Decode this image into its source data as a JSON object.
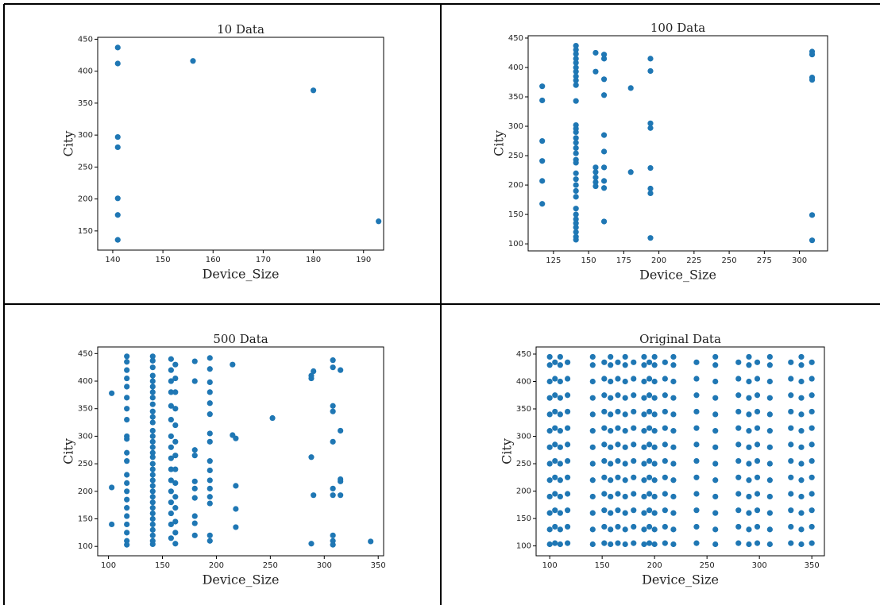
{
  "chart_data": [
    {
      "type": "scatter",
      "title": "10 Data",
      "x_label": "Device_Size",
      "y_label": "City",
      "color": "#1f77b4",
      "xlim": [
        137,
        194
      ],
      "ylim": [
        120,
        453
      ],
      "xticks": [
        140,
        150,
        160,
        170,
        180,
        190
      ],
      "yticks": [
        150,
        200,
        250,
        300,
        350,
        400,
        450
      ],
      "x": [
        141,
        141,
        141,
        141,
        141,
        141,
        141,
        156,
        180,
        193
      ],
      "y": [
        437,
        412,
        297,
        281,
        201,
        175,
        136,
        416,
        370,
        165
      ]
    },
    {
      "type": "scatter",
      "title": "100 Data",
      "x_label": "Device_Size",
      "y_label": "City",
      "color": "#1f77b4",
      "xlim": [
        107,
        320
      ],
      "ylim": [
        88,
        454
      ],
      "xticks": [
        125,
        150,
        175,
        200,
        225,
        250,
        275,
        300
      ],
      "yticks": [
        100,
        150,
        200,
        250,
        300,
        350,
        400,
        450
      ],
      "x": [
        117,
        117,
        117,
        117,
        117,
        117,
        141,
        141,
        141,
        141,
        141,
        141,
        141,
        141,
        141,
        141,
        141,
        141,
        141,
        141,
        141,
        141,
        141,
        141,
        141,
        141,
        141,
        141,
        141,
        141,
        141,
        141,
        141,
        141,
        141,
        141,
        141,
        141,
        141,
        155,
        155,
        155,
        155,
        155,
        155,
        155,
        161,
        161,
        161,
        161,
        161,
        161,
        161,
        161,
        161,
        161,
        180,
        180,
        194,
        194,
        194,
        194,
        194,
        194,
        194,
        194,
        309,
        309,
        309,
        309,
        309,
        309
      ],
      "y": [
        368,
        344,
        275,
        241,
        207,
        168,
        437,
        430,
        423,
        415,
        408,
        400,
        393,
        385,
        378,
        370,
        343,
        302,
        296,
        290,
        280,
        272,
        263,
        254,
        243,
        238,
        220,
        210,
        200,
        190,
        180,
        160,
        150,
        142,
        135,
        128,
        120,
        112,
        107,
        425,
        393,
        230,
        222,
        213,
        205,
        198,
        422,
        415,
        380,
        353,
        285,
        257,
        230,
        207,
        195,
        138,
        365,
        222,
        415,
        394,
        305,
        297,
        229,
        194,
        186,
        110,
        427,
        422,
        383,
        379,
        149,
        106
      ]
    },
    {
      "type": "scatter",
      "title": "500 Data",
      "x_label": "Device_Size",
      "y_label": "City",
      "color": "#1f77b4",
      "xlim": [
        90,
        355
      ],
      "ylim": [
        83,
        462
      ],
      "xticks": [
        100,
        150,
        200,
        250,
        300,
        350
      ],
      "yticks": [
        100,
        150,
        200,
        250,
        300,
        350,
        400,
        450
      ],
      "x": [
        103,
        103,
        103,
        117,
        117,
        117,
        117,
        117,
        117,
        117,
        117,
        117,
        117,
        117,
        117,
        117,
        117,
        117,
        117,
        117,
        117,
        117,
        117,
        117,
        117,
        141,
        141,
        141,
        141,
        141,
        141,
        141,
        141,
        141,
        141,
        141,
        141,
        141,
        141,
        141,
        141,
        141,
        141,
        141,
        141,
        141,
        141,
        141,
        141,
        141,
        141,
        141,
        141,
        141,
        141,
        141,
        141,
        141,
        141,
        158,
        158,
        158,
        158,
        158,
        158,
        158,
        158,
        158,
        158,
        158,
        158,
        158,
        158,
        158,
        158,
        162,
        162,
        162,
        162,
        162,
        162,
        162,
        162,
        162,
        162,
        162,
        162,
        162,
        162,
        180,
        180,
        180,
        180,
        180,
        180,
        180,
        180,
        180,
        180,
        194,
        194,
        194,
        194,
        194,
        194,
        194,
        194,
        194,
        194,
        194,
        194,
        194,
        194,
        194,
        194,
        215,
        215,
        218,
        218,
        218,
        218,
        252,
        288,
        288,
        288,
        288,
        290,
        290,
        308,
        308,
        308,
        308,
        308,
        308,
        308,
        308,
        308,
        308,
        315,
        315,
        315,
        315,
        315,
        343
      ],
      "y": [
        378,
        207,
        140,
        445,
        435,
        420,
        405,
        390,
        370,
        350,
        330,
        300,
        295,
        270,
        255,
        230,
        215,
        200,
        185,
        170,
        155,
        140,
        125,
        110,
        103,
        445,
        437,
        425,
        410,
        400,
        390,
        380,
        370,
        358,
        345,
        335,
        325,
        310,
        300,
        290,
        280,
        270,
        262,
        250,
        240,
        230,
        220,
        210,
        200,
        190,
        180,
        170,
        160,
        150,
        140,
        130,
        120,
        110,
        104,
        440,
        420,
        400,
        380,
        355,
        330,
        300,
        280,
        260,
        240,
        220,
        200,
        180,
        160,
        140,
        115,
        430,
        405,
        380,
        350,
        320,
        290,
        265,
        240,
        215,
        190,
        170,
        145,
        125,
        105,
        436,
        400,
        275,
        265,
        218,
        205,
        188,
        155,
        142,
        120,
        442,
        422,
        398,
        380,
        360,
        340,
        305,
        290,
        255,
        238,
        220,
        205,
        190,
        178,
        120,
        110,
        430,
        302,
        296,
        210,
        168,
        135,
        333,
        410,
        405,
        262,
        105,
        418,
        193,
        438,
        425,
        355,
        345,
        290,
        205,
        193,
        120,
        110,
        103,
        420,
        310,
        222,
        218,
        193,
        109
      ]
    },
    {
      "type": "scatter",
      "title": "Original Data",
      "x_label": "Device_Size",
      "y_label": "City",
      "color": "#1f77b4",
      "xlim": [
        87,
        362
      ],
      "ylim": [
        82,
        463
      ],
      "xticks": [
        100,
        150,
        200,
        250,
        300,
        350
      ],
      "yticks": [
        100,
        150,
        200,
        250,
        300,
        350,
        400,
        450
      ],
      "x": [
        100,
        100,
        100,
        100,
        100,
        100,
        100,
        100,
        100,
        100,
        100,
        100,
        100,
        105,
        105,
        105,
        105,
        105,
        105,
        105,
        105,
        105,
        105,
        105,
        105,
        110,
        110,
        110,
        110,
        110,
        110,
        110,
        110,
        110,
        110,
        110,
        110,
        110,
        117,
        117,
        117,
        117,
        117,
        117,
        117,
        117,
        117,
        117,
        117,
        117,
        141,
        141,
        141,
        141,
        141,
        141,
        141,
        141,
        141,
        141,
        141,
        141,
        141,
        152,
        152,
        152,
        152,
        152,
        152,
        152,
        152,
        152,
        152,
        152,
        152,
        158,
        158,
        158,
        158,
        158,
        158,
        158,
        158,
        158,
        158,
        158,
        158,
        158,
        165,
        165,
        165,
        165,
        165,
        165,
        165,
        165,
        165,
        165,
        165,
        165,
        172,
        172,
        172,
        172,
        172,
        172,
        172,
        172,
        172,
        172,
        172,
        172,
        172,
        180,
        180,
        180,
        180,
        180,
        180,
        180,
        180,
        180,
        180,
        180,
        180,
        190,
        190,
        190,
        190,
        190,
        190,
        190,
        190,
        190,
        190,
        190,
        190,
        190,
        195,
        195,
        195,
        195,
        195,
        195,
        195,
        195,
        195,
        195,
        195,
        195,
        200,
        200,
        200,
        200,
        200,
        200,
        200,
        200,
        200,
        200,
        200,
        200,
        200,
        210,
        210,
        210,
        210,
        210,
        210,
        210,
        210,
        210,
        210,
        210,
        210,
        218,
        218,
        218,
        218,
        218,
        218,
        218,
        218,
        218,
        218,
        218,
        218,
        218,
        240,
        240,
        240,
        240,
        240,
        240,
        240,
        240,
        240,
        240,
        240,
        240,
        258,
        258,
        258,
        258,
        258,
        258,
        258,
        258,
        258,
        258,
        258,
        258,
        258,
        280,
        280,
        280,
        280,
        280,
        280,
        280,
        280,
        280,
        280,
        280,
        280,
        290,
        290,
        290,
        290,
        290,
        290,
        290,
        290,
        290,
        290,
        290,
        290,
        290,
        298,
        298,
        298,
        298,
        298,
        298,
        298,
        298,
        298,
        298,
        298,
        298,
        310,
        310,
        310,
        310,
        310,
        310,
        310,
        310,
        310,
        310,
        310,
        310,
        310,
        330,
        330,
        330,
        330,
        330,
        330,
        330,
        330,
        330,
        330,
        330,
        330,
        340,
        340,
        340,
        340,
        340,
        340,
        340,
        340,
        340,
        340,
        340,
        340,
        340,
        350,
        350,
        350,
        350,
        350,
        350,
        350,
        350,
        350,
        350,
        350,
        350
      ],
      "y": [
        103,
        130,
        160,
        190,
        220,
        250,
        280,
        310,
        340,
        370,
        400,
        430,
        445,
        105,
        135,
        165,
        195,
        225,
        255,
        285,
        315,
        345,
        375,
        405,
        435,
        103,
        130,
        160,
        190,
        220,
        250,
        280,
        310,
        340,
        370,
        400,
        430,
        445,
        105,
        135,
        165,
        195,
        225,
        255,
        285,
        315,
        345,
        375,
        405,
        435,
        103,
        130,
        160,
        190,
        220,
        250,
        280,
        310,
        340,
        370,
        400,
        430,
        445,
        105,
        135,
        165,
        195,
        225,
        255,
        285,
        315,
        345,
        375,
        405,
        435,
        103,
        130,
        160,
        190,
        220,
        250,
        280,
        310,
        340,
        370,
        400,
        430,
        445,
        105,
        135,
        165,
        195,
        225,
        255,
        285,
        315,
        345,
        375,
        405,
        435,
        103,
        130,
        160,
        190,
        220,
        250,
        280,
        310,
        340,
        370,
        400,
        430,
        445,
        105,
        135,
        165,
        195,
        225,
        255,
        285,
        315,
        345,
        375,
        405,
        435,
        103,
        130,
        160,
        190,
        220,
        250,
        280,
        310,
        340,
        370,
        400,
        430,
        445,
        105,
        135,
        165,
        195,
        225,
        255,
        285,
        315,
        345,
        375,
        405,
        435,
        103,
        130,
        160,
        190,
        220,
        250,
        280,
        310,
        340,
        370,
        400,
        430,
        445,
        105,
        135,
        165,
        195,
        225,
        255,
        285,
        315,
        345,
        375,
        405,
        435,
        103,
        130,
        160,
        190,
        220,
        250,
        280,
        310,
        340,
        370,
        400,
        430,
        445,
        105,
        135,
        165,
        195,
        225,
        255,
        285,
        315,
        345,
        375,
        405,
        435,
        103,
        130,
        160,
        190,
        220,
        250,
        280,
        310,
        340,
        370,
        400,
        430,
        445,
        105,
        135,
        165,
        195,
        225,
        255,
        285,
        315,
        345,
        375,
        405,
        435,
        103,
        130,
        160,
        190,
        220,
        250,
        280,
        310,
        340,
        370,
        400,
        430,
        445,
        105,
        135,
        165,
        195,
        225,
        255,
        285,
        315,
        345,
        375,
        405,
        435,
        103,
        130,
        160,
        190,
        220,
        250,
        280,
        310,
        340,
        370,
        400,
        430,
        445,
        105,
        135,
        165,
        195,
        225,
        255,
        285,
        315,
        345,
        375,
        405,
        435,
        103,
        130,
        160,
        190,
        220,
        250,
        280,
        310,
        340,
        370,
        400,
        430,
        445,
        105,
        135,
        165,
        195,
        225,
        255,
        285,
        315,
        345,
        375,
        405,
        435
      ]
    }
  ]
}
